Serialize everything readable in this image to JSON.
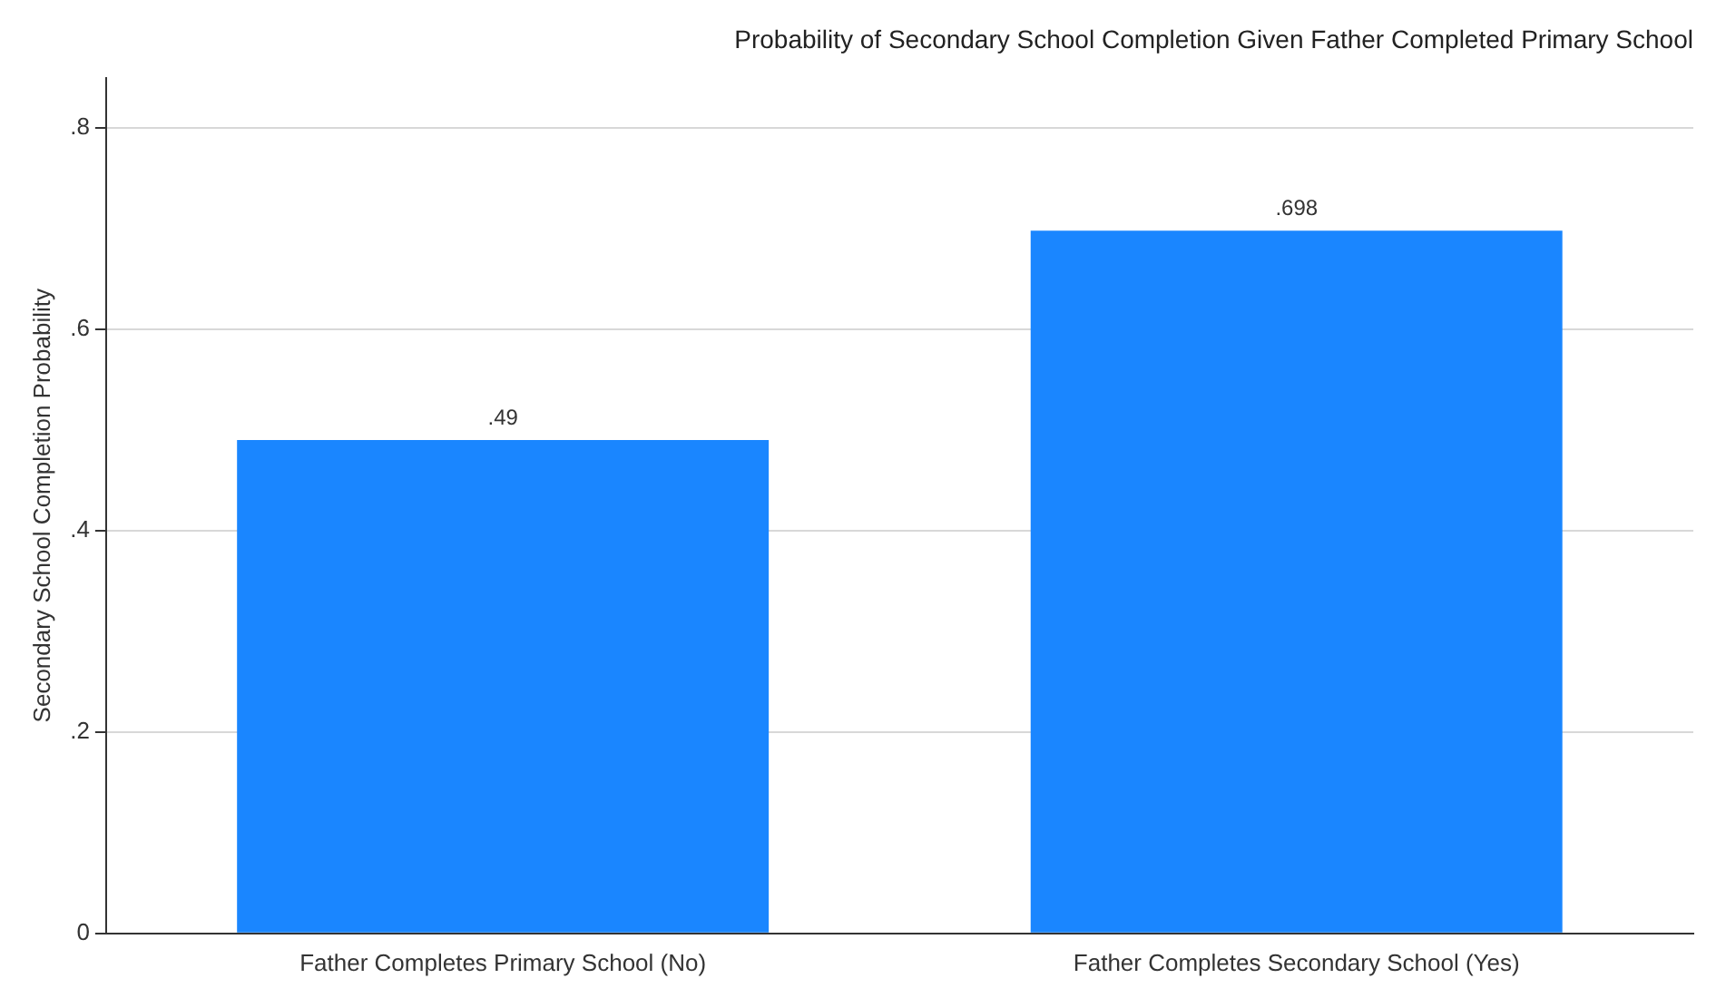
{
  "chart_data": {
    "type": "bar",
    "title": "Probability of Secondary School Completion Given Father Completed Primary School",
    "ylabel": "Secondary School Completion Probability",
    "categories": [
      "Father Completes Primary School (No)",
      "Father Completes Secondary School (Yes)"
    ],
    "values": [
      0.49,
      0.698
    ],
    "value_labels": [
      ".49",
      ".698"
    ],
    "color": "#1a86ff",
    "ylim": [
      0,
      0.85
    ],
    "yticks": [
      {
        "value": 0,
        "label": "0"
      },
      {
        "value": 0.2,
        "label": ".2"
      },
      {
        "value": 0.4,
        "label": ".4"
      },
      {
        "value": 0.6,
        "label": ".6"
      },
      {
        "value": 0.8,
        "label": ".8"
      }
    ],
    "grid": "y",
    "legend": false
  }
}
